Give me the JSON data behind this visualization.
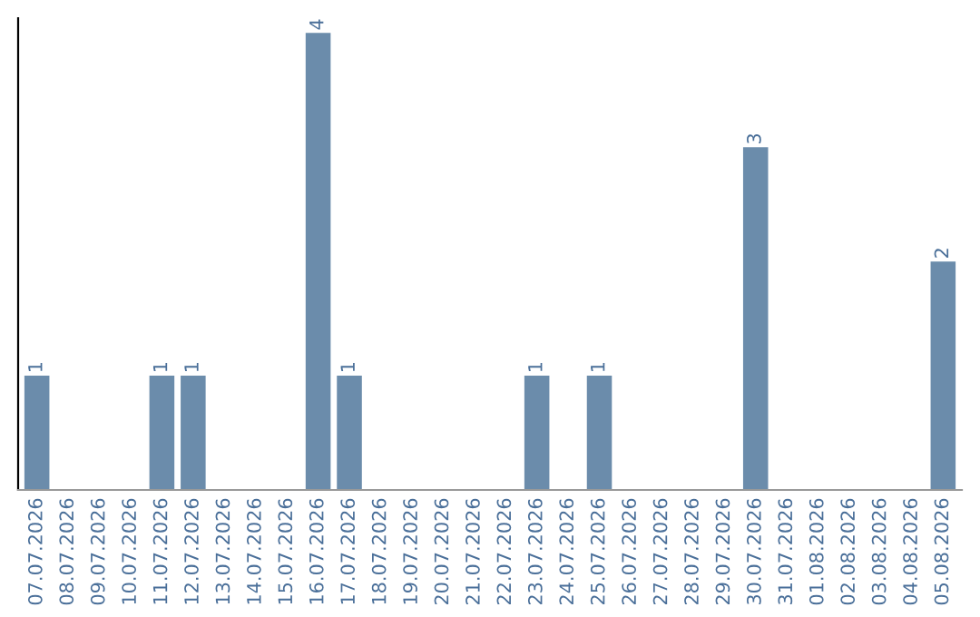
{
  "chart_data": {
    "type": "bar",
    "categories": [
      "07.07.2026",
      "08.07.2026",
      "09.07.2026",
      "10.07.2026",
      "11.07.2026",
      "12.07.2026",
      "13.07.2026",
      "14.07.2026",
      "15.07.2026",
      "16.07.2026",
      "17.07.2026",
      "18.07.2026",
      "19.07.2026",
      "20.07.2026",
      "21.07.2026",
      "22.07.2026",
      "23.07.2026",
      "24.07.2026",
      "25.07.2026",
      "26.07.2026",
      "27.07.2026",
      "28.07.2026",
      "29.07.2026",
      "30.07.2026",
      "31.07.2026",
      "01.08.2026",
      "02.08.2026",
      "03.08.2026",
      "04.08.2026",
      "05.08.2026"
    ],
    "values": [
      1,
      0,
      0,
      0,
      1,
      1,
      0,
      0,
      0,
      4,
      1,
      0,
      0,
      0,
      0,
      0,
      1,
      0,
      1,
      0,
      0,
      0,
      0,
      3,
      0,
      0,
      0,
      0,
      0,
      2
    ],
    "value_labels": [
      "1",
      null,
      null,
      null,
      "1",
      "1",
      null,
      null,
      null,
      "4",
      "1",
      null,
      null,
      null,
      null,
      null,
      "1",
      null,
      "1",
      null,
      null,
      null,
      null,
      "3",
      null,
      null,
      null,
      null,
      null,
      "2"
    ],
    "color": "#6b8cab",
    "ylim": [
      0,
      4.13
    ],
    "tick_labels": "x",
    "grid": false,
    "legend": false
  }
}
